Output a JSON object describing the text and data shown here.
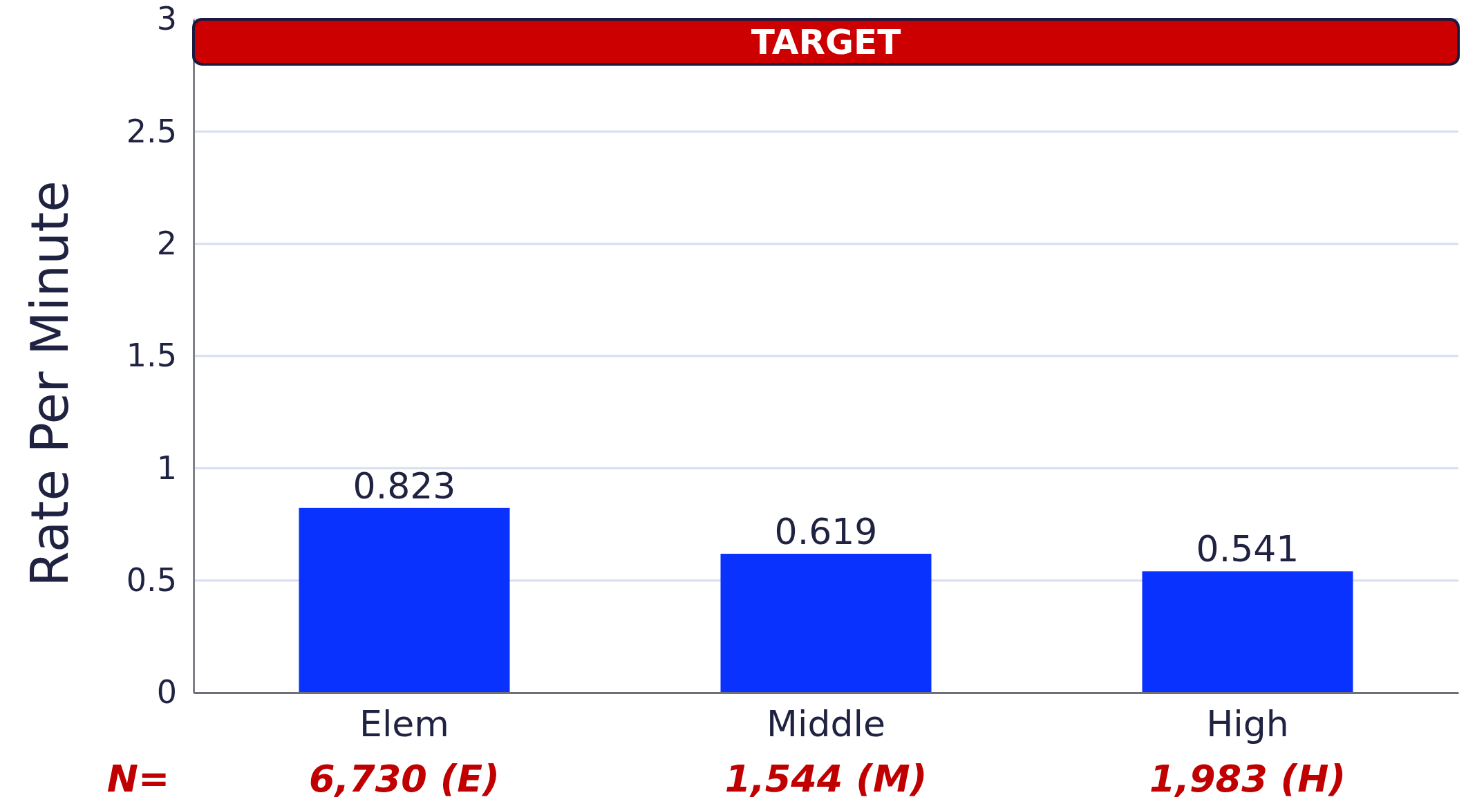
{
  "chart_data": {
    "type": "bar",
    "ylabel": "Rate Per Minute",
    "categories": [
      "Elem",
      "Middle",
      "High"
    ],
    "values": [
      0.823,
      0.619,
      0.541
    ],
    "color": "#0a32ff",
    "data_labels": true,
    "ylim": [
      0,
      3
    ],
    "yticks": [
      0,
      0.5,
      1,
      1.5,
      2,
      2.5,
      3
    ],
    "grid": "y",
    "bands": [
      {
        "axis": "y",
        "from": 2.8,
        "to": 3,
        "label": "TARGET",
        "color": "#cc0000"
      }
    ],
    "annotations": [
      "N=",
      "6,730 (E)",
      "1,544 (M)",
      "1,983 (H)"
    ]
  }
}
